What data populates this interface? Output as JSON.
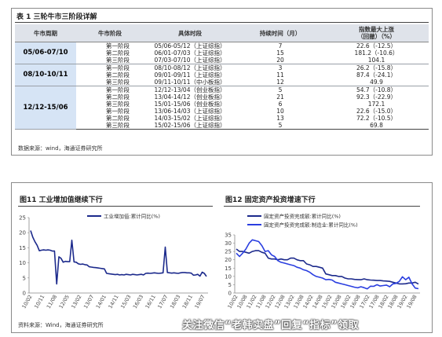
{
  "table": {
    "title": "表 1 三轮牛市三阶段详解",
    "headers": [
      "牛市周期",
      "牛市阶段",
      "具体时段",
      "持续时间（月）",
      "指数最大上涨\n（回撤）（%）"
    ],
    "groups": [
      {
        "cycle": "05/06-07/10",
        "rows": [
          {
            "stage": "第一阶段",
            "period": "05/06-05/12（上证综指）",
            "months": "7",
            "change": "22.6（-12.5）"
          },
          {
            "stage": "第二阶段",
            "period": "06/01-07/03（上证综指）",
            "months": "15",
            "change": "181.2（-10.6）"
          },
          {
            "stage": "第三阶段",
            "period": "07/03-07/10（上证综指）",
            "months": "20",
            "change": "104.1"
          }
        ]
      },
      {
        "cycle": "08/10-10/11",
        "rows": [
          {
            "stage": "第一阶段",
            "period": "08/10-08/12（上证综指）",
            "months": "3",
            "change": "26.2（-15.8）"
          },
          {
            "stage": "第二阶段",
            "period": "09/01-09/11（上证综指）",
            "months": "11",
            "change": "87.4（-24.1）"
          },
          {
            "stage": "第三阶段",
            "period": "09/11-10/11（中小板指）",
            "months": "12",
            "change": "49.9"
          }
        ]
      },
      {
        "cycle": "12/12-15/06",
        "rows": [
          {
            "stage": "第一阶段",
            "period": "12/12-13/04（创业板指）",
            "months": "5",
            "change": "54.7（-10.8）"
          },
          {
            "stage": "第二阶段",
            "period": "13/04-14/12（创业板指）",
            "months": "21",
            "change": "92.3（-22.9）"
          },
          {
            "stage": "第三阶段",
            "period": "15/01-15/06（创业板指）",
            "months": "6",
            "change": "172.1"
          },
          {
            "stage": "第一阶段",
            "period": "13/06-14/03（上证综指）",
            "months": "10",
            "change": "22.6（-15.0）"
          },
          {
            "stage": "第二阶段",
            "period": "14/03-15/02（上证综指）",
            "months": "13",
            "change": "72.2（-10.5）"
          },
          {
            "stage": "第三阶段",
            "period": "15/02-15/06（上证综指）",
            "months": "5",
            "change": "69.8"
          }
        ]
      }
    ],
    "source": "数据来源：wind，海通证券研究所"
  },
  "charts_source": "资料来源：Wind，海通证券研究所",
  "watermark": "关注微信“老韩实盘”回复“指标”领取",
  "chart_data": [
    {
      "type": "line",
      "title": "图11 工业增加值继续下行",
      "xlabel": "",
      "ylabel": "",
      "ylim": [
        0,
        25
      ],
      "yticks": [
        0,
        5,
        10,
        15,
        20,
        25
      ],
      "xticks": [
        "10/02",
        "10/11",
        "11/08",
        "12/05",
        "13/02",
        "13/07",
        "14/01",
        "14/11",
        "15/03",
        "16/03",
        "16/11",
        "17/07",
        "18/03",
        "18/11",
        "19/07"
      ],
      "grid": false,
      "legend": "top-center",
      "color": "#1c2a8c",
      "series": [
        {
          "name": "工业增加值:累计同比(%)",
          "values": [
            20.7,
            18.5,
            17.0,
            15.8,
            14.0,
            14.2,
            14.3,
            14.2,
            14.3,
            14.2,
            13.9,
            13.9,
            3.0,
            12.0,
            11.5,
            10.2,
            10.5,
            10.4,
            10.4,
            17.5,
            10.3,
            10.2,
            9.7,
            9.5,
            9.6,
            9.4,
            9.3,
            8.7,
            8.6,
            8.5,
            8.4,
            8.3,
            8.2,
            8.1,
            8.0,
            6.5,
            6.4,
            6.3,
            6.2,
            6.1,
            6.2,
            6.0,
            6.1,
            6.0,
            6.2,
            6.1,
            6.0,
            6.2,
            6.1,
            6.0,
            6.1,
            6.2,
            6.0,
            6.5,
            6.6,
            6.5,
            6.6,
            6.7,
            6.6,
            6.5,
            6.6,
            6.7,
            15.2,
            6.8,
            6.7,
            6.6,
            6.7,
            6.6,
            6.5,
            6.7,
            6.8,
            6.8,
            6.7,
            6.7,
            6.6,
            5.9,
            6.0,
            6.2,
            5.6,
            6.9,
            6.5,
            5.5
          ]
        }
      ]
    },
    {
      "type": "line",
      "title": "图12 固定资产投资增速下行",
      "xlabel": "",
      "ylabel": "",
      "ylim": [
        0,
        35
      ],
      "yticks": [
        0,
        5,
        10,
        15,
        20,
        25,
        30,
        35
      ],
      "xticks": [
        "10/02",
        "10/08",
        "11/02",
        "11/08",
        "12/02",
        "12/08",
        "13/02",
        "13/08",
        "14/02",
        "14/08",
        "15/02",
        "15/08",
        "16/02",
        "16/08",
        "17/02",
        "17/08",
        "18/02",
        "18/08",
        "19/02",
        "19/08"
      ],
      "grid": false,
      "legend": "top-center",
      "series": [
        {
          "name": "固定资产投资完成额:累计同比(%)",
          "color": "#1c2a8c",
          "values": [
            26.5,
            25.0,
            25.0,
            24.5,
            24.0,
            25.0,
            25.5,
            25.5,
            24.5,
            24.0,
            21.0,
            20.5,
            20.5,
            20.0,
            20.5,
            20.0,
            20.0,
            21.0,
            21.0,
            20.0,
            19.5,
            19.5,
            17.5,
            17.0,
            16.0,
            16.0,
            15.5,
            15.0,
            11.5,
            11.0,
            10.5,
            10.5,
            10.0,
            10.0,
            9.0,
            8.5,
            8.5,
            8.2,
            8.1,
            8.0,
            8.5,
            8.0,
            7.8,
            7.7,
            7.5,
            7.5,
            7.3,
            7.2,
            7.0,
            6.5,
            6.0,
            5.5,
            5.5,
            5.6,
            6.0,
            6.0,
            6.5,
            5.4
          ]
        },
        {
          "name": "固定资产投资完成额:制造业:累计同比(%)",
          "color": "#2a3ee0",
          "values": [
            24.0,
            22.0,
            24.0,
            26.5,
            30.0,
            32.0,
            31.5,
            31.0,
            28.5,
            25.0,
            25.5,
            23.0,
            22.0,
            19.5,
            18.5,
            18.0,
            17.5,
            17.0,
            16.5,
            15.5,
            15.0,
            14.0,
            13.5,
            12.5,
            11.0,
            10.0,
            9.5,
            9.0,
            8.0,
            8.2,
            7.8,
            6.5,
            6.0,
            5.5,
            5.0,
            4.5,
            4.0,
            3.5,
            3.1,
            3.8,
            3.2,
            2.5,
            4.1,
            4.0,
            5.0,
            4.2,
            4.5,
            4.8,
            3.8,
            5.5,
            5.8,
            7.0,
            9.8,
            8.0,
            9.5,
            5.5,
            3.0,
            2.6
          ]
        }
      ]
    }
  ]
}
